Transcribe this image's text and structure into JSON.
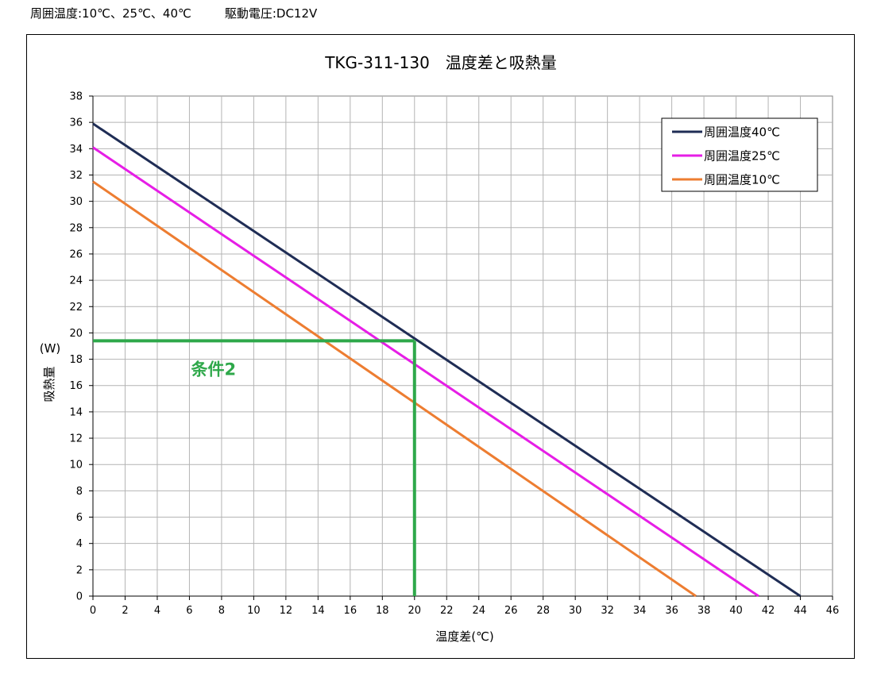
{
  "header": {
    "ambient": "周囲温度:10℃、25℃、40℃",
    "voltage": "駆動電圧:DC12V"
  },
  "chart_data": {
    "type": "line",
    "title": "TKG-311-130　温度差と吸熱量",
    "xlabel": "温度差(℃)",
    "ylabel": "吸熱量",
    "yunit": "(W)",
    "xlim": [
      0,
      46
    ],
    "ylim": [
      0,
      38
    ],
    "xticks": [
      0,
      2,
      4,
      6,
      8,
      10,
      12,
      14,
      16,
      18,
      20,
      22,
      24,
      26,
      28,
      30,
      32,
      34,
      36,
      38,
      40,
      42,
      44,
      46
    ],
    "yticks": [
      0,
      2,
      4,
      6,
      8,
      10,
      12,
      14,
      16,
      18,
      20,
      22,
      24,
      26,
      28,
      30,
      32,
      34,
      36,
      38
    ],
    "grid": true,
    "legend_position": "top-right",
    "series": [
      {
        "name": "周囲温度40℃",
        "color": "#1f2d55",
        "x": [
          0,
          44.0
        ],
        "y": [
          35.9,
          0
        ]
      },
      {
        "name": "周囲温度25℃",
        "color": "#e61ee6",
        "x": [
          0,
          41.4
        ],
        "y": [
          34.1,
          0
        ]
      },
      {
        "name": "周囲温度10℃",
        "color": "#ed7d31",
        "x": [
          0,
          37.5
        ],
        "y": [
          31.5,
          0
        ]
      }
    ],
    "annotation": {
      "label": "条件2",
      "color": "#2ea84a",
      "x": 20,
      "y": 19.4,
      "label_at": [
        7.5,
        16.8
      ]
    }
  }
}
